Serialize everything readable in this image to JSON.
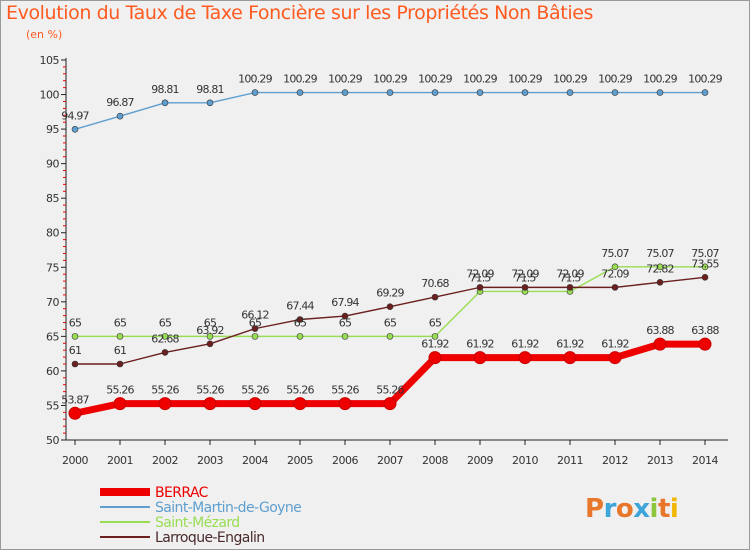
{
  "title": "Evolution du Taux de Taxe Foncière sur les Propriétés Non Bâties",
  "unit_label": "(en %)",
  "logo": {
    "text": "Proxiti",
    "colors": [
      "#e8762b",
      "#3da5d9",
      "#8cc63f",
      "#f2b705"
    ]
  },
  "chart_data": {
    "type": "line",
    "title": "Evolution du Taux de Taxe Foncière sur les Propriétés Non Bâties",
    "ylabel": "(en %)",
    "x": [
      "2000",
      "2001",
      "2002",
      "2003",
      "2004",
      "2005",
      "2006",
      "2007",
      "2008",
      "2009",
      "2010",
      "2011",
      "2012",
      "2013",
      "2014"
    ],
    "ylim": [
      50,
      105
    ],
    "yticks": [
      "50",
      "55",
      "60",
      "65",
      "70",
      "75",
      "80",
      "85",
      "90",
      "95",
      "100",
      "105"
    ],
    "grid": false,
    "legend_position": "bottom-left",
    "series": [
      {
        "name": "BERRAC",
        "color": "#ee0000",
        "thick": true,
        "values": [
          53.87,
          55.26,
          55.26,
          55.26,
          55.26,
          55.26,
          55.26,
          55.26,
          61.92,
          61.92,
          61.92,
          61.92,
          61.92,
          63.88,
          63.88
        ],
        "labels": [
          "53.87",
          "55.26",
          "55.26",
          "55.26",
          "55.26",
          "55.26",
          "55.26",
          "55.26",
          "61.92",
          "61.92",
          "61.92",
          "61.92",
          "61.92",
          "63.88",
          "63.88"
        ]
      },
      {
        "name": "Saint-Martin-de-Goyne",
        "color": "#5e9fd0",
        "thick": false,
        "values": [
          94.97,
          96.87,
          98.81,
          98.81,
          100.29,
          100.29,
          100.29,
          100.29,
          100.29,
          100.29,
          100.29,
          100.29,
          100.29,
          100.29,
          100.29
        ],
        "labels": [
          "94.97",
          "96.87",
          "98.81",
          "98.81",
          "100.29",
          "100.29",
          "100.29",
          "100.29",
          "100.29",
          "100.29",
          "100.29",
          "100.29",
          "100.29",
          "100.29",
          "100.29"
        ]
      },
      {
        "name": "Saint-Mézard",
        "color": "#99dd55",
        "thick": false,
        "values": [
          65,
          65,
          65,
          65,
          65,
          65,
          65,
          65,
          65,
          71.5,
          71.5,
          71.5,
          75.07,
          75.07,
          75.07
        ],
        "labels": [
          "65",
          "65",
          "65",
          "65",
          "65",
          "65",
          "65",
          "65",
          "65",
          "71.5",
          "71.5",
          "71.5",
          "75.07",
          "75.07",
          "75.07"
        ]
      },
      {
        "name": "Larroque-Engalin",
        "color": "#6b1f1f",
        "thick": false,
        "values": [
          61,
          61,
          62.68,
          63.92,
          66.12,
          67.44,
          67.94,
          69.29,
          70.68,
          72.09,
          72.09,
          72.09,
          72.09,
          72.82,
          73.55
        ],
        "labels": [
          "61",
          "61",
          "62.68",
          "63.92",
          "66.12",
          "67.44",
          "67.94",
          "69.29",
          "70.68",
          "72.09",
          "72.09",
          "72.09",
          "72.09",
          "72.82",
          "73.55"
        ]
      }
    ]
  }
}
